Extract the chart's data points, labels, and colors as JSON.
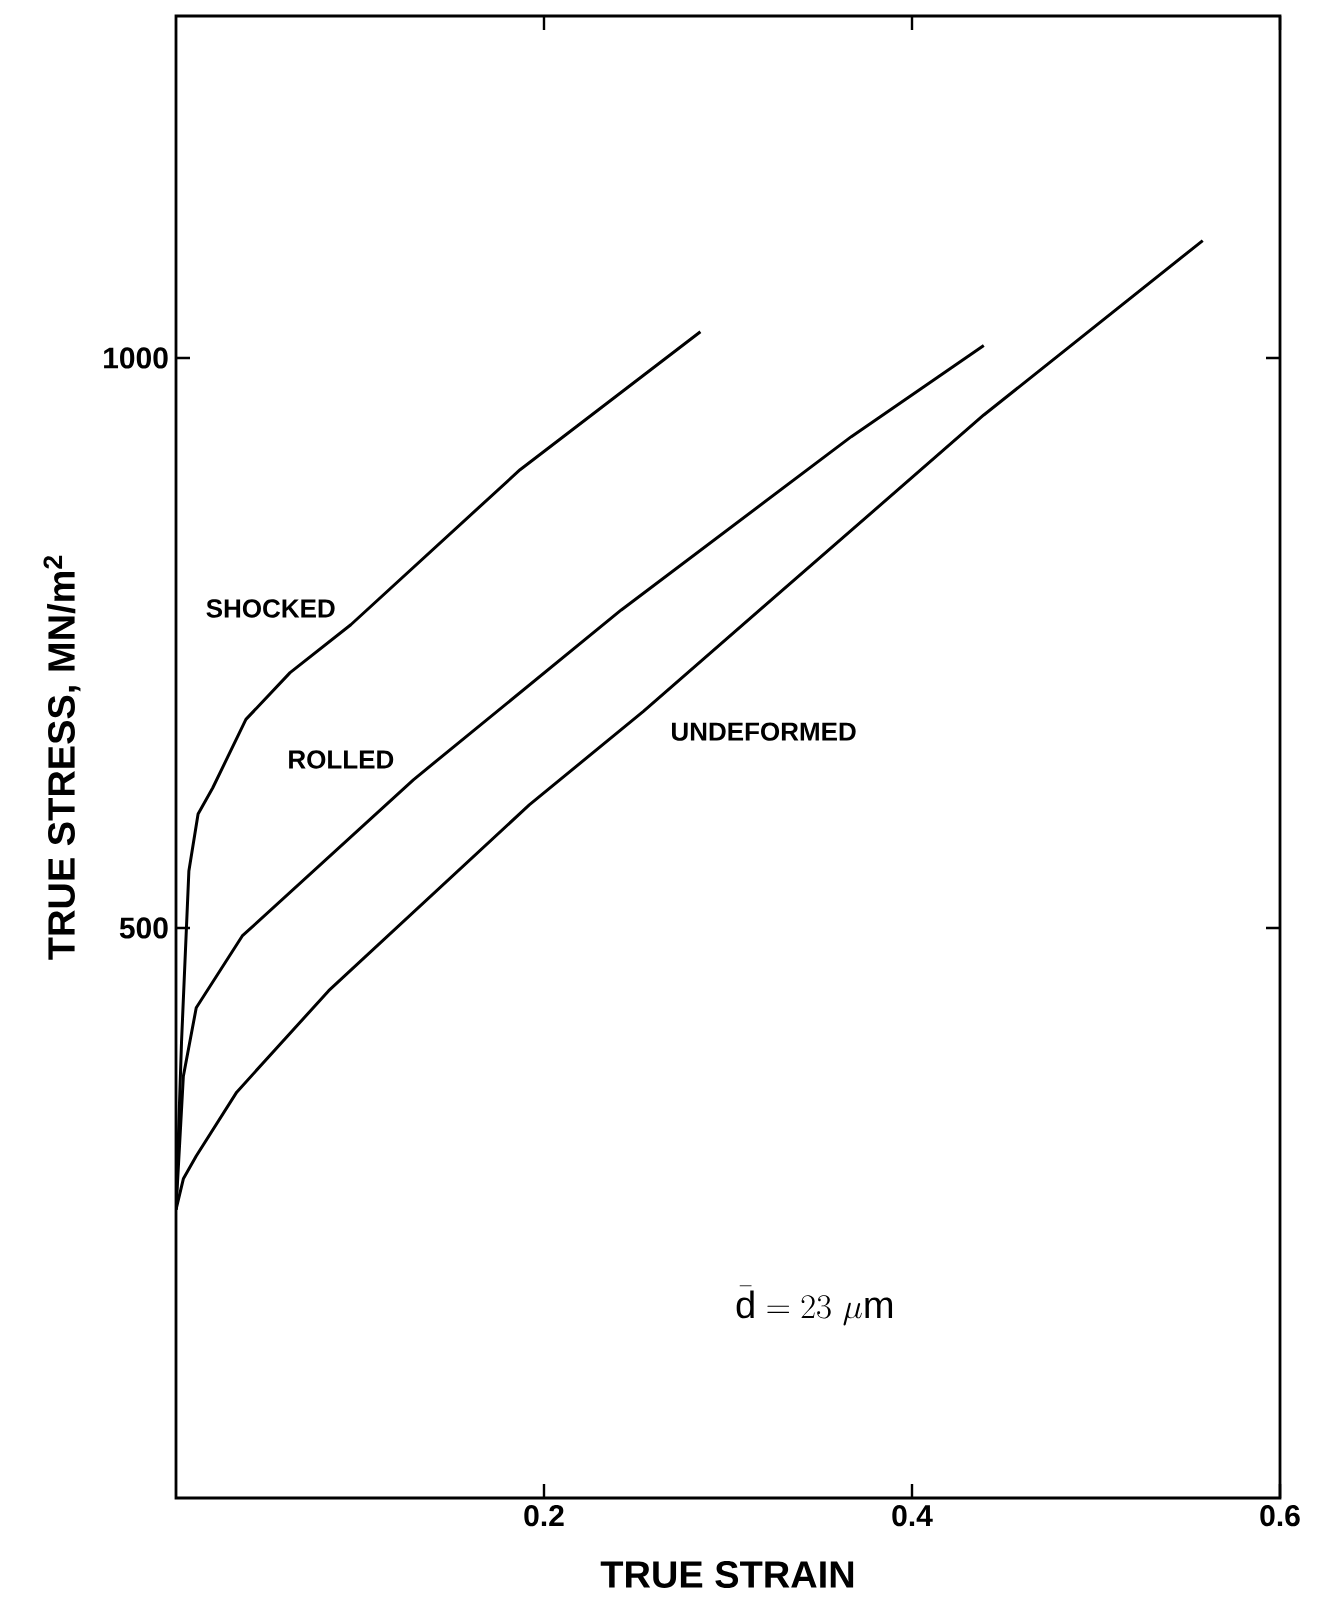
{
  "chart_data": {
    "type": "line",
    "xlabel": "TRUE  STRAIN",
    "ylabel": "TRUE  STRESS, MN/m$^{2}$",
    "xlim": [
      0,
      0.6
    ],
    "ylim": [
      0,
      1300
    ],
    "xticks": [
      0.2,
      0.4,
      0.6
    ],
    "yticks": [
      500,
      1000
    ],
    "grid": false,
    "legend": false,
    "marker": "none",
    "line_style": "solid",
    "x": [
      0,
      0.003,
      0.007,
      0.012,
      0.02,
      0.038,
      0.062,
      0.095,
      0.187,
      0.285
    ],
    "series": [
      {
        "name": "SHOCKED",
        "color": "#000000",
        "values": [
          253,
          400,
          550,
          600,
          623,
          683,
          724,
          766,
          902,
          1023
        ]
      },
      {
        "name": "ROLLED",
        "color": "#000000",
        "x": [
          0,
          0.004,
          0.011,
          0.036,
          0.129,
          0.242,
          0.367,
          0.439
        ],
        "values": [
          253,
          370,
          430,
          493,
          630,
          779,
          931,
          1011
        ]
      },
      {
        "name": "UNDEFORMED",
        "color": "#000000",
        "x": [
          0,
          0.004,
          0.011,
          0.033,
          0.083,
          0.192,
          0.254,
          0.439,
          0.558
        ],
        "values": [
          253,
          280,
          300,
          356,
          445,
          608,
          690,
          950,
          1103
        ]
      }
    ],
    "annotations": [
      "\\bar{\\mathrm{d}} = 23\\ \\mu\\mathrm{m}"
    ]
  }
}
